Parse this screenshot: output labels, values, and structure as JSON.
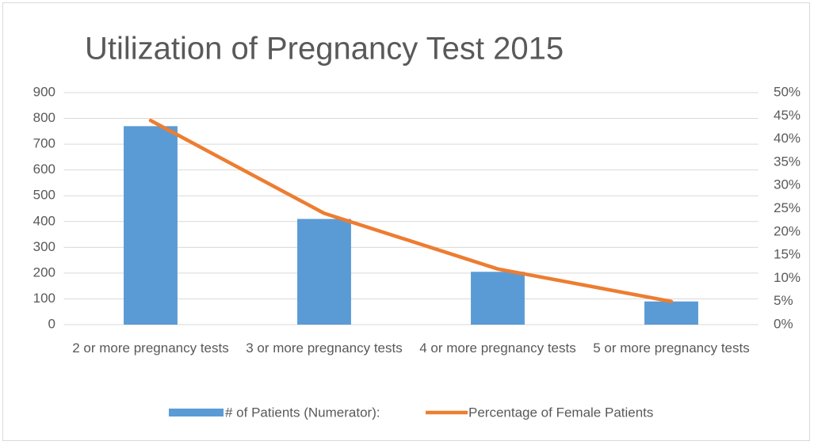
{
  "chart_data": {
    "type": "bar",
    "title": "Utilization of Pregnancy Test 2015",
    "categories": [
      "2 or more pregnancy tests",
      "3 or more pregnancy tests",
      "4 or more pregnancy tests",
      "5 or more pregnancy tests"
    ],
    "series": [
      {
        "name": "# of Patients (Numerator):",
        "type": "bar",
        "color": "#5b9bd5",
        "values": [
          770,
          410,
          205,
          90
        ]
      },
      {
        "name": "Percentage of Female Patients",
        "type": "line",
        "axis": "y2",
        "color": "#ed7d31",
        "values": [
          44,
          24,
          12,
          5
        ]
      }
    ],
    "ylim": [
      0,
      900
    ],
    "yticks": [
      0,
      100,
      200,
      300,
      400,
      500,
      600,
      700,
      800,
      900
    ],
    "y2lim": [
      0,
      50
    ],
    "y2ticks": [
      {
        "value": 0,
        "label": "0%"
      },
      {
        "value": 5,
        "label": "5%"
      },
      {
        "value": 10,
        "label": "10%"
      },
      {
        "value": 15,
        "label": "15%"
      },
      {
        "value": 20,
        "label": "20%"
      },
      {
        "value": 25,
        "label": "25%"
      },
      {
        "value": 30,
        "label": "30%"
      },
      {
        "value": 35,
        "label": "35%"
      },
      {
        "value": 40,
        "label": "40%"
      },
      {
        "value": 45,
        "label": "45%"
      },
      {
        "value": 50,
        "label": "50%"
      }
    ],
    "grid": true,
    "legend": "bottom"
  }
}
